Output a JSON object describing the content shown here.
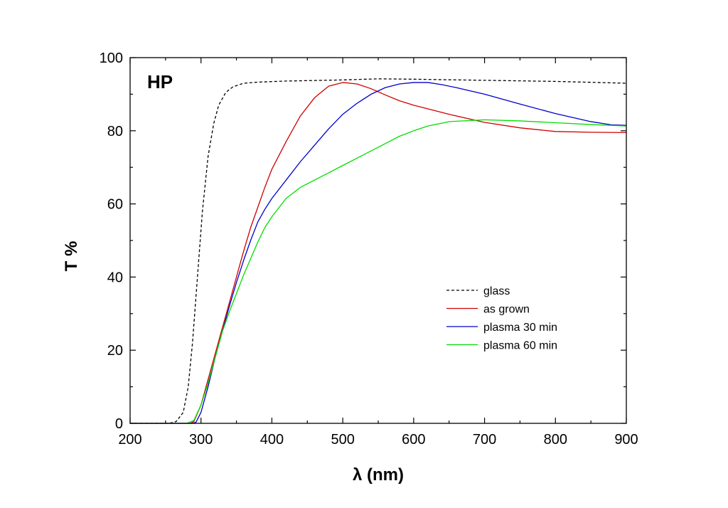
{
  "chart_data": {
    "type": "line",
    "annotation": "HP",
    "xlabel": "λ (nm)",
    "ylabel": "T %",
    "xlim": [
      200,
      900
    ],
    "ylim": [
      0,
      100
    ],
    "x_ticks": [
      200,
      300,
      400,
      500,
      600,
      700,
      800,
      900
    ],
    "y_ticks": [
      0,
      20,
      40,
      60,
      80,
      100
    ],
    "grid": false,
    "legend_position": "center-right",
    "series": [
      {
        "name": "glass",
        "color": "#000000",
        "dash": true,
        "points": [
          [
            200,
            0
          ],
          [
            255,
            0
          ],
          [
            265,
            0.5
          ],
          [
            275,
            3
          ],
          [
            282,
            10
          ],
          [
            288,
            22
          ],
          [
            295,
            40
          ],
          [
            302,
            58
          ],
          [
            310,
            73
          ],
          [
            318,
            82
          ],
          [
            325,
            87
          ],
          [
            335,
            90.5
          ],
          [
            345,
            92
          ],
          [
            360,
            93
          ],
          [
            380,
            93.3
          ],
          [
            420,
            93.6
          ],
          [
            500,
            93.9
          ],
          [
            550,
            94.2
          ],
          [
            600,
            94.1
          ],
          [
            700,
            93.8
          ],
          [
            800,
            93.5
          ],
          [
            900,
            93
          ]
        ]
      },
      {
        "name": "as grown",
        "color": "#d00000",
        "dash": false,
        "points": [
          [
            200,
            0
          ],
          [
            285,
            0
          ],
          [
            290,
            0.5
          ],
          [
            300,
            5
          ],
          [
            310,
            12
          ],
          [
            320,
            19
          ],
          [
            330,
            26
          ],
          [
            340,
            33
          ],
          [
            350,
            40
          ],
          [
            360,
            47
          ],
          [
            370,
            53.5
          ],
          [
            380,
            59
          ],
          [
            390,
            64.5
          ],
          [
            400,
            69.5
          ],
          [
            420,
            77
          ],
          [
            440,
            84
          ],
          [
            460,
            89
          ],
          [
            480,
            92.2
          ],
          [
            500,
            93.2
          ],
          [
            520,
            92.8
          ],
          [
            540,
            91.5
          ],
          [
            560,
            89.8
          ],
          [
            580,
            88.2
          ],
          [
            600,
            87
          ],
          [
            650,
            84.5
          ],
          [
            700,
            82.3
          ],
          [
            750,
            80.8
          ],
          [
            800,
            79.8
          ],
          [
            850,
            79.6
          ],
          [
            900,
            79.5
          ]
        ]
      },
      {
        "name": "plasma 30 min",
        "color": "#0000cc",
        "dash": false,
        "points": [
          [
            200,
            0
          ],
          [
            288,
            0
          ],
          [
            293,
            0.3
          ],
          [
            300,
            3
          ],
          [
            310,
            10
          ],
          [
            320,
            18
          ],
          [
            330,
            25
          ],
          [
            340,
            32
          ],
          [
            350,
            38.5
          ],
          [
            360,
            44.5
          ],
          [
            370,
            50
          ],
          [
            380,
            55
          ],
          [
            390,
            58.5
          ],
          [
            400,
            61.5
          ],
          [
            420,
            66.5
          ],
          [
            440,
            71.5
          ],
          [
            460,
            76
          ],
          [
            480,
            80.5
          ],
          [
            500,
            84.5
          ],
          [
            520,
            87.5
          ],
          [
            540,
            90
          ],
          [
            560,
            91.8
          ],
          [
            580,
            92.8
          ],
          [
            600,
            93.2
          ],
          [
            620,
            93.2
          ],
          [
            640,
            92.6
          ],
          [
            660,
            91.8
          ],
          [
            700,
            90
          ],
          [
            750,
            87.3
          ],
          [
            800,
            84.7
          ],
          [
            850,
            82.5
          ],
          [
            880,
            81.6
          ],
          [
            900,
            81.5
          ]
        ]
      },
      {
        "name": "plasma 60 min",
        "color": "#00dd00",
        "dash": false,
        "points": [
          [
            200,
            0
          ],
          [
            280,
            0
          ],
          [
            290,
            0.8
          ],
          [
            300,
            5
          ],
          [
            310,
            11
          ],
          [
            320,
            18
          ],
          [
            330,
            25
          ],
          [
            340,
            30.5
          ],
          [
            350,
            35.5
          ],
          [
            360,
            40.5
          ],
          [
            370,
            45
          ],
          [
            380,
            49.5
          ],
          [
            390,
            53.5
          ],
          [
            400,
            56.5
          ],
          [
            420,
            61.5
          ],
          [
            440,
            64.5
          ],
          [
            460,
            66.5
          ],
          [
            480,
            68.5
          ],
          [
            500,
            70.5
          ],
          [
            520,
            72.5
          ],
          [
            540,
            74.5
          ],
          [
            560,
            76.5
          ],
          [
            580,
            78.5
          ],
          [
            600,
            80
          ],
          [
            620,
            81.3
          ],
          [
            650,
            82.5
          ],
          [
            700,
            83
          ],
          [
            750,
            82.7
          ],
          [
            800,
            82.2
          ],
          [
            850,
            81.7
          ],
          [
            900,
            81.3
          ]
        ]
      }
    ]
  }
}
